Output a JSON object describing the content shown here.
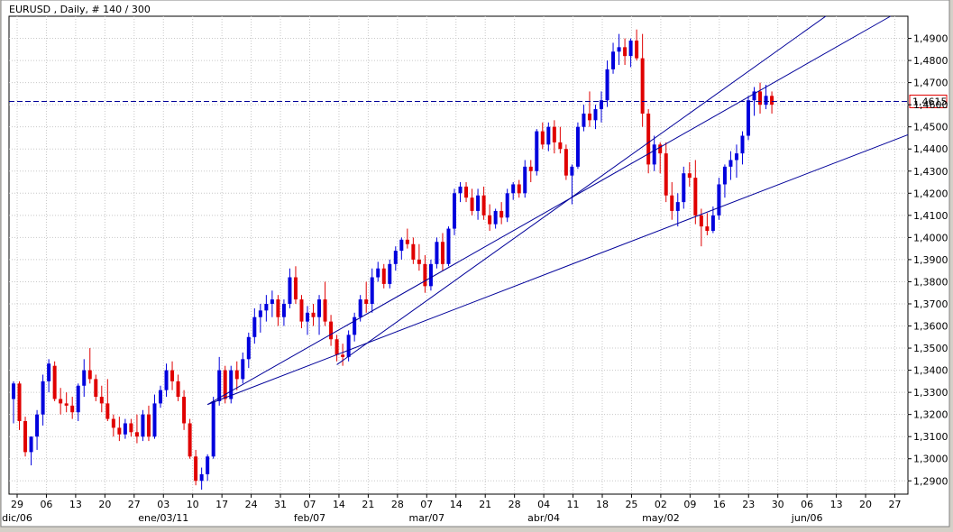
{
  "header": {
    "title": "EURUSD , Daily, # 140 / 300"
  },
  "colors": {
    "up": "#0000dd",
    "down": "#e00000",
    "grid": "#c8c8c8",
    "trend": "#000099",
    "price_line": "#000099",
    "price_box_border": "#e00000"
  },
  "chart_data": {
    "type": "candlestick",
    "symbol": "EURUSD",
    "timeframe": "Daily",
    "ylim": [
      1.284,
      1.5
    ],
    "y_ticks": [
      "1,2900",
      "1,3000",
      "1,3100",
      "1,3200",
      "1,3300",
      "1,3400",
      "1,3500",
      "1,3600",
      "1,3700",
      "1,3800",
      "1,3900",
      "1,4000",
      "1,4100",
      "1,4200",
      "1,4300",
      "1,4400",
      "1,4500",
      "1,4600",
      "1,4700",
      "1,4800",
      "1,4900"
    ],
    "x_ticks": [
      "29",
      "06",
      "13",
      "20",
      "27",
      "03",
      "10",
      "17",
      "24",
      "31",
      "07",
      "14",
      "21",
      "28",
      "07",
      "14",
      "21",
      "28",
      "04",
      "11",
      "18",
      "25",
      "02",
      "09",
      "16",
      "23",
      "30",
      "06",
      "13",
      "20",
      "27"
    ],
    "month_labels": [
      "dic/06",
      "ene/03/11",
      "feb/07",
      "mar/07",
      "abr/04",
      "may/02",
      "jun/06"
    ],
    "current_price": {
      "label": "1,4615",
      "value": 1.4615
    },
    "candles": [
      [
        1.327,
        1.335,
        1.316,
        1.334
      ],
      [
        1.334,
        1.335,
        1.313,
        1.317
      ],
      [
        1.317,
        1.319,
        1.301,
        1.303
      ],
      [
        1.303,
        1.31,
        1.297,
        1.31
      ],
      [
        1.31,
        1.322,
        1.304,
        1.32
      ],
      [
        1.32,
        1.338,
        1.315,
        1.335
      ],
      [
        1.335,
        1.345,
        1.33,
        1.343
      ],
      [
        1.342,
        1.344,
        1.326,
        1.327
      ],
      [
        1.327,
        1.332,
        1.32,
        1.325
      ],
      [
        1.325,
        1.33,
        1.321,
        1.324
      ],
      [
        1.324,
        1.328,
        1.318,
        1.321
      ],
      [
        1.321,
        1.334,
        1.317,
        1.333
      ],
      [
        1.333,
        1.345,
        1.328,
        1.34
      ],
      [
        1.34,
        1.35,
        1.334,
        1.336
      ],
      [
        1.336,
        1.338,
        1.326,
        1.328
      ],
      [
        1.328,
        1.333,
        1.321,
        1.325
      ],
      [
        1.325,
        1.336,
        1.317,
        1.318
      ],
      [
        1.318,
        1.32,
        1.31,
        1.314
      ],
      [
        1.314,
        1.319,
        1.308,
        1.311
      ],
      [
        1.311,
        1.318,
        1.309,
        1.316
      ],
      [
        1.316,
        1.318,
        1.31,
        1.312
      ],
      [
        1.312,
        1.32,
        1.307,
        1.31
      ],
      [
        1.31,
        1.322,
        1.308,
        1.32
      ],
      [
        1.32,
        1.324,
        1.308,
        1.31
      ],
      [
        1.31,
        1.329,
        1.309,
        1.325
      ],
      [
        1.325,
        1.333,
        1.323,
        1.331
      ],
      [
        1.331,
        1.343,
        1.328,
        1.34
      ],
      [
        1.34,
        1.344,
        1.331,
        1.335
      ],
      [
        1.335,
        1.338,
        1.326,
        1.328
      ],
      [
        1.328,
        1.331,
        1.313,
        1.316
      ],
      [
        1.316,
        1.318,
        1.3,
        1.301
      ],
      [
        1.301,
        1.304,
        1.288,
        1.29
      ],
      [
        1.29,
        1.296,
        1.286,
        1.293
      ],
      [
        1.293,
        1.302,
        1.29,
        1.301
      ],
      [
        1.301,
        1.328,
        1.3,
        1.326
      ],
      [
        1.326,
        1.346,
        1.324,
        1.34
      ],
      [
        1.34,
        1.342,
        1.325,
        1.327
      ],
      [
        1.327,
        1.342,
        1.325,
        1.34
      ],
      [
        1.34,
        1.344,
        1.331,
        1.336
      ],
      [
        1.336,
        1.348,
        1.334,
        1.345
      ],
      [
        1.345,
        1.357,
        1.341,
        1.355
      ],
      [
        1.355,
        1.368,
        1.352,
        1.364
      ],
      [
        1.364,
        1.37,
        1.357,
        1.367
      ],
      [
        1.367,
        1.374,
        1.362,
        1.37
      ],
      [
        1.37,
        1.376,
        1.364,
        1.372
      ],
      [
        1.372,
        1.374,
        1.36,
        1.364
      ],
      [
        1.364,
        1.372,
        1.36,
        1.37
      ],
      [
        1.37,
        1.386,
        1.368,
        1.382
      ],
      [
        1.382,
        1.387,
        1.37,
        1.372
      ],
      [
        1.372,
        1.374,
        1.359,
        1.362
      ],
      [
        1.362,
        1.369,
        1.356,
        1.366
      ],
      [
        1.366,
        1.37,
        1.36,
        1.364
      ],
      [
        1.364,
        1.374,
        1.356,
        1.372
      ],
      [
        1.372,
        1.38,
        1.36,
        1.362
      ],
      [
        1.362,
        1.365,
        1.351,
        1.354
      ],
      [
        1.354,
        1.356,
        1.344,
        1.347
      ],
      [
        1.347,
        1.352,
        1.342,
        1.346
      ],
      [
        1.346,
        1.358,
        1.344,
        1.356
      ],
      [
        1.356,
        1.366,
        1.353,
        1.364
      ],
      [
        1.364,
        1.374,
        1.362,
        1.372
      ],
      [
        1.372,
        1.38,
        1.366,
        1.37
      ],
      [
        1.37,
        1.386,
        1.366,
        1.382
      ],
      [
        1.382,
        1.389,
        1.38,
        1.386
      ],
      [
        1.386,
        1.388,
        1.377,
        1.379
      ],
      [
        1.379,
        1.39,
        1.377,
        1.388
      ],
      [
        1.388,
        1.396,
        1.385,
        1.394
      ],
      [
        1.394,
        1.4,
        1.39,
        1.399
      ],
      [
        1.399,
        1.404,
        1.395,
        1.397
      ],
      [
        1.397,
        1.4,
        1.388,
        1.39
      ],
      [
        1.39,
        1.397,
        1.385,
        1.388
      ],
      [
        1.388,
        1.392,
        1.375,
        1.378
      ],
      [
        1.378,
        1.39,
        1.376,
        1.388
      ],
      [
        1.388,
        1.4,
        1.386,
        1.398
      ],
      [
        1.398,
        1.402,
        1.385,
        1.388
      ],
      [
        1.388,
        1.405,
        1.387,
        1.404
      ],
      [
        1.404,
        1.422,
        1.401,
        1.42
      ],
      [
        1.42,
        1.425,
        1.416,
        1.423
      ],
      [
        1.423,
        1.425,
        1.416,
        1.418
      ],
      [
        1.418,
        1.422,
        1.41,
        1.412
      ],
      [
        1.412,
        1.422,
        1.408,
        1.419
      ],
      [
        1.419,
        1.423,
        1.408,
        1.41
      ],
      [
        1.41,
        1.415,
        1.403,
        1.406
      ],
      [
        1.406,
        1.413,
        1.404,
        1.412
      ],
      [
        1.412,
        1.416,
        1.406,
        1.409
      ],
      [
        1.409,
        1.422,
        1.407,
        1.42
      ],
      [
        1.42,
        1.425,
        1.417,
        1.424
      ],
      [
        1.424,
        1.426,
        1.418,
        1.42
      ],
      [
        1.42,
        1.435,
        1.418,
        1.432
      ],
      [
        1.432,
        1.435,
        1.425,
        1.43
      ],
      [
        1.43,
        1.449,
        1.428,
        1.448
      ],
      [
        1.448,
        1.452,
        1.44,
        1.442
      ],
      [
        1.442,
        1.452,
        1.439,
        1.45
      ],
      [
        1.45,
        1.453,
        1.438,
        1.443
      ],
      [
        1.443,
        1.45,
        1.438,
        1.44
      ],
      [
        1.44,
        1.442,
        1.426,
        1.428
      ],
      [
        1.428,
        1.433,
        1.415,
        1.432
      ],
      [
        1.432,
        1.452,
        1.431,
        1.45
      ],
      [
        1.45,
        1.46,
        1.448,
        1.456
      ],
      [
        1.456,
        1.466,
        1.45,
        1.453
      ],
      [
        1.453,
        1.46,
        1.449,
        1.458
      ],
      [
        1.458,
        1.466,
        1.452,
        1.462
      ],
      [
        1.462,
        1.48,
        1.459,
        1.476
      ],
      [
        1.476,
        1.488,
        1.474,
        1.484
      ],
      [
        1.484,
        1.492,
        1.478,
        1.486
      ],
      [
        1.486,
        1.49,
        1.478,
        1.482
      ],
      [
        1.482,
        1.49,
        1.477,
        1.489
      ],
      [
        1.489,
        1.494,
        1.48,
        1.481
      ],
      [
        1.481,
        1.492,
        1.45,
        1.456
      ],
      [
        1.456,
        1.458,
        1.429,
        1.433
      ],
      [
        1.433,
        1.446,
        1.43,
        1.442
      ],
      [
        1.442,
        1.443,
        1.429,
        1.438
      ],
      [
        1.438,
        1.443,
        1.416,
        1.419
      ],
      [
        1.419,
        1.425,
        1.408,
        1.412
      ],
      [
        1.412,
        1.42,
        1.405,
        1.416
      ],
      [
        1.416,
        1.432,
        1.413,
        1.429
      ],
      [
        1.429,
        1.434,
        1.423,
        1.427
      ],
      [
        1.427,
        1.435,
        1.406,
        1.41
      ],
      [
        1.41,
        1.413,
        1.396,
        1.405
      ],
      [
        1.405,
        1.411,
        1.401,
        1.403
      ],
      [
        1.403,
        1.414,
        1.402,
        1.41
      ],
      [
        1.41,
        1.427,
        1.408,
        1.424
      ],
      [
        1.424,
        1.433,
        1.418,
        1.432
      ],
      [
        1.432,
        1.439,
        1.426,
        1.435
      ],
      [
        1.435,
        1.442,
        1.427,
        1.438
      ],
      [
        1.438,
        1.448,
        1.433,
        1.446
      ],
      [
        1.446,
        1.464,
        1.444,
        1.462
      ],
      [
        1.462,
        1.468,
        1.455,
        1.466
      ],
      [
        1.466,
        1.47,
        1.456,
        1.46
      ],
      [
        1.46,
        1.469,
        1.458,
        1.464
      ],
      [
        1.464,
        1.466,
        1.456,
        1.46
      ]
    ],
    "trendlines": [
      {
        "from": [
          33,
          1.3245
        ],
        "to": [
          128,
          1.468
        ]
      },
      {
        "from": [
          55,
          1.3425
        ],
        "to": [
          135,
          1.494
        ]
      },
      {
        "from": [
          33,
          1.3245
        ],
        "to": [
          140,
          1.434
        ]
      }
    ]
  }
}
